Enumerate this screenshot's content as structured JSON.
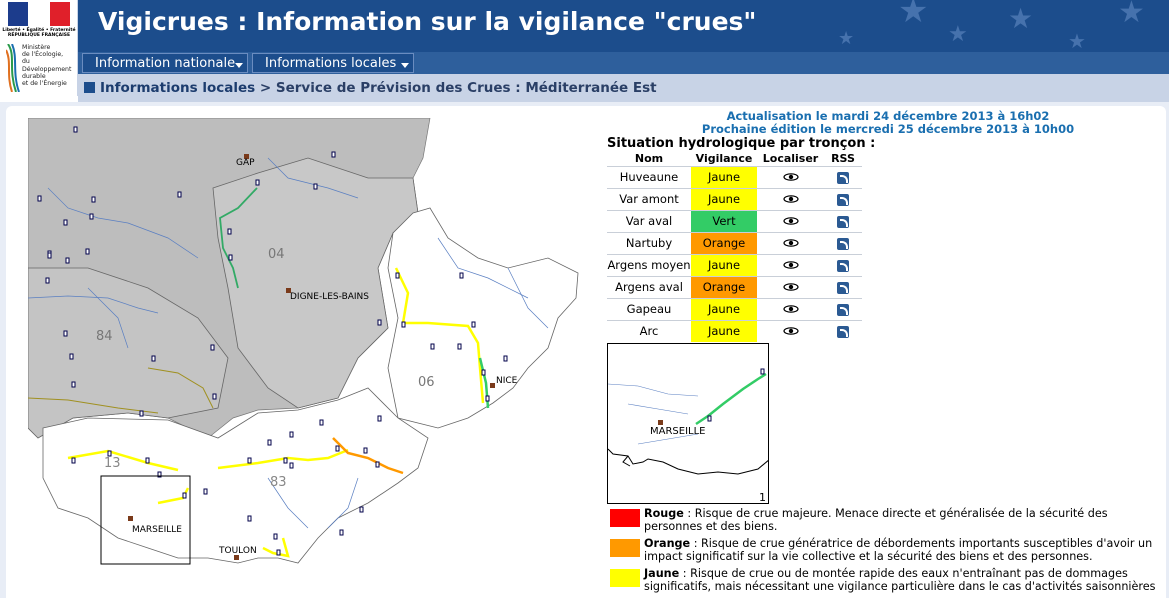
{
  "logo": {
    "republic_top": "Liberté • Égalité • Fraternité",
    "republic": "RÉPUBLIQUE FRANÇAISE",
    "ministry": [
      "Ministère",
      "de l'Écologie,",
      "du Développement",
      "durable",
      "et de l'Énergie"
    ]
  },
  "header": {
    "title": "Vigicrues : Information sur la vigilance \"crues\""
  },
  "nav": {
    "items": [
      {
        "label": "Information nationale"
      },
      {
        "label": "Informations locales"
      }
    ]
  },
  "breadcrumb": {
    "section": "Informations locales",
    "separator": " > ",
    "page": "Service de Prévision des Crues : Méditerranée Est"
  },
  "update": {
    "line1": "Actualisation le mardi 24 décembre 2013 à 16h02",
    "line2": "Prochaine édition le mercredi 25 décembre 2013 à 10h00"
  },
  "situation": {
    "title": "Situation hydrologique par tronçon :",
    "headers": [
      "Nom",
      "Vigilance",
      "Localiser",
      "RSS"
    ],
    "rows": [
      {
        "name": "Huveaune",
        "level": "Jaune",
        "color": "#ffff00"
      },
      {
        "name": "Var amont",
        "level": "Jaune",
        "color": "#ffff00"
      },
      {
        "name": "Var aval",
        "level": "Vert",
        "color": "#33cc66"
      },
      {
        "name": "Nartuby",
        "level": "Orange",
        "color": "#ff9900"
      },
      {
        "name": "Argens moyen",
        "level": "Jaune",
        "color": "#ffff00"
      },
      {
        "name": "Argens aval",
        "level": "Orange",
        "color": "#ff9900"
      },
      {
        "name": "Gapeau",
        "level": "Jaune",
        "color": "#ffff00"
      },
      {
        "name": "Arc",
        "level": "Jaune",
        "color": "#ffff00"
      }
    ]
  },
  "map": {
    "cities": {
      "gap": "GAP",
      "digne": "DIGNE-LES-BAINS",
      "nice": "NICE",
      "marseille": "MARSEILLE",
      "toulon": "TOULON"
    },
    "departments": {
      "d04": "04",
      "d84": "84",
      "d06": "06",
      "d13": "13",
      "d83": "83"
    }
  },
  "minimap": {
    "city": "MARSEILLE",
    "index": "1"
  },
  "legend": [
    {
      "level": "Rouge",
      "color": "#ff0000",
      "text": " : Risque de crue majeure. Menace directe et généralisée de la sécurité des personnes et des biens."
    },
    {
      "level": "Orange",
      "color": "#ff9900",
      "text": " : Risque de crue génératrice de débordements importants susceptibles d'avoir un impact significatif sur la vie collective et la sécurité des biens et des personnes."
    },
    {
      "level": "Jaune",
      "color": "#ffff00",
      "text": " : Risque de crue ou de montée rapide des eaux n'entraînant pas de dommages significatifs, mais nécessitant une vigilance particulière dans le cas d'activités saisonnières"
    }
  ],
  "colors": {
    "banner": "#1c4d8c",
    "nav": "#2e5f9c",
    "crumbbar": "#c8d3e6",
    "update": "#1a6fb0"
  }
}
